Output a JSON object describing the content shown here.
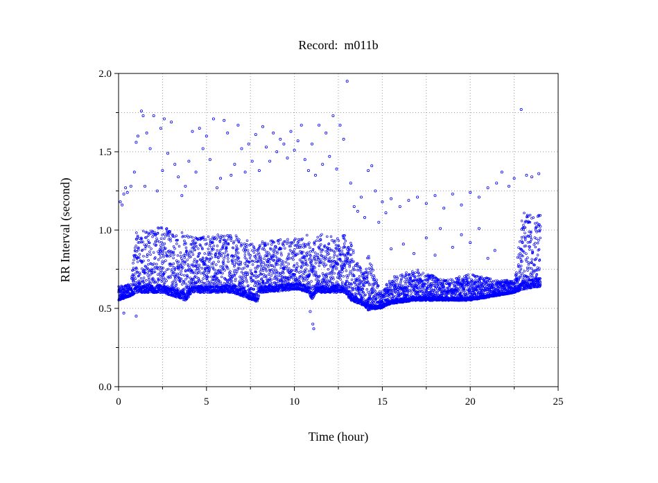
{
  "chart_data": {
    "type": "scatter",
    "title": "Record:  m011b",
    "xlabel": "Time (hour)",
    "ylabel": "RR Interval (second)",
    "xlim": [
      0,
      25
    ],
    "ylim": [
      0.0,
      2.0
    ],
    "x_ticks": [
      0,
      5,
      10,
      15,
      20,
      25
    ],
    "x_tick_labels": [
      "0",
      "5",
      "10",
      "15",
      "20",
      "25"
    ],
    "y_ticks": [
      0.0,
      0.5,
      1.0,
      1.5,
      2.0
    ],
    "y_tick_labels": [
      "0.0",
      "0.5",
      "1.0",
      "1.5",
      "2.0"
    ],
    "grid": true,
    "marker": "open-circle",
    "color": "#0000ff",
    "series": [
      {
        "band_profile": [
          {
            "x": 0.0,
            "low": 0.55,
            "high": 0.64
          },
          {
            "x": 0.7,
            "low": 0.58,
            "high": 0.66
          },
          {
            "x": 1.0,
            "low": 0.6,
            "high": 1.0
          },
          {
            "x": 2.5,
            "low": 0.6,
            "high": 1.02
          },
          {
            "x": 3.8,
            "low": 0.55,
            "high": 0.98
          },
          {
            "x": 4.2,
            "low": 0.6,
            "high": 0.96
          },
          {
            "x": 6.5,
            "low": 0.6,
            "high": 0.98
          },
          {
            "x": 7.9,
            "low": 0.54,
            "high": 0.9
          },
          {
            "x": 8.0,
            "low": 0.6,
            "high": 0.93
          },
          {
            "x": 10.2,
            "low": 0.62,
            "high": 0.95
          },
          {
            "x": 10.8,
            "low": 0.6,
            "high": 1.0
          },
          {
            "x": 11.0,
            "low": 0.55,
            "high": 0.85
          },
          {
            "x": 11.2,
            "low": 0.6,
            "high": 0.98
          },
          {
            "x": 12.9,
            "low": 0.6,
            "high": 0.97
          },
          {
            "x": 13.2,
            "low": 0.55,
            "high": 0.92
          },
          {
            "x": 13.9,
            "low": 0.52,
            "high": 0.72
          },
          {
            "x": 14.2,
            "low": 0.49,
            "high": 0.85
          },
          {
            "x": 14.9,
            "low": 0.5,
            "high": 0.6
          },
          {
            "x": 15.5,
            "low": 0.53,
            "high": 0.7
          },
          {
            "x": 17.0,
            "low": 0.55,
            "high": 0.75
          },
          {
            "x": 18.5,
            "low": 0.55,
            "high": 0.68
          },
          {
            "x": 20.0,
            "low": 0.55,
            "high": 0.72
          },
          {
            "x": 21.5,
            "low": 0.58,
            "high": 0.68
          },
          {
            "x": 22.5,
            "low": 0.6,
            "high": 0.68
          },
          {
            "x": 23.0,
            "low": 0.62,
            "high": 1.12
          },
          {
            "x": 24.0,
            "low": 0.64,
            "high": 1.1
          }
        ],
        "outliers": [
          [
            0.1,
            1.18
          ],
          [
            0.2,
            1.16
          ],
          [
            0.3,
            1.23
          ],
          [
            0.4,
            1.27
          ],
          [
            0.5,
            1.24
          ],
          [
            0.7,
            1.28
          ],
          [
            0.9,
            1.37
          ],
          [
            1.0,
            1.56
          ],
          [
            1.1,
            1.6
          ],
          [
            1.3,
            1.76
          ],
          [
            1.4,
            1.73
          ],
          [
            1.5,
            1.28
          ],
          [
            1.6,
            1.62
          ],
          [
            1.8,
            1.52
          ],
          [
            2.0,
            1.73
          ],
          [
            2.2,
            1.25
          ],
          [
            2.4,
            1.65
          ],
          [
            2.5,
            1.38
          ],
          [
            2.6,
            1.71
          ],
          [
            2.8,
            1.49
          ],
          [
            3.0,
            1.69
          ],
          [
            3.2,
            1.42
          ],
          [
            3.4,
            1.34
          ],
          [
            3.6,
            1.22
          ],
          [
            3.8,
            1.28
          ],
          [
            4.0,
            1.44
          ],
          [
            4.2,
            1.63
          ],
          [
            4.4,
            1.37
          ],
          [
            4.6,
            1.65
          ],
          [
            4.8,
            1.52
          ],
          [
            5.0,
            1.6
          ],
          [
            5.2,
            1.45
          ],
          [
            5.4,
            1.71
          ],
          [
            5.6,
            1.27
          ],
          [
            5.8,
            1.33
          ],
          [
            6.0,
            1.7
          ],
          [
            6.2,
            1.62
          ],
          [
            6.4,
            1.35
          ],
          [
            6.6,
            1.42
          ],
          [
            6.8,
            1.67
          ],
          [
            7.0,
            1.52
          ],
          [
            7.2,
            1.37
          ],
          [
            7.4,
            1.55
          ],
          [
            7.6,
            1.44
          ],
          [
            7.8,
            1.61
          ],
          [
            8.0,
            1.38
          ],
          [
            8.2,
            1.66
          ],
          [
            8.4,
            1.53
          ],
          [
            8.6,
            1.44
          ],
          [
            8.8,
            1.62
          ],
          [
            9.0,
            1.5
          ],
          [
            9.2,
            1.58
          ],
          [
            9.4,
            1.55
          ],
          [
            9.6,
            1.46
          ],
          [
            9.8,
            1.63
          ],
          [
            10.0,
            1.51
          ],
          [
            10.2,
            1.57
          ],
          [
            10.4,
            1.67
          ],
          [
            10.6,
            1.45
          ],
          [
            10.8,
            1.38
          ],
          [
            11.0,
            1.55
          ],
          [
            11.2,
            1.35
          ],
          [
            11.4,
            1.67
          ],
          [
            11.6,
            1.42
          ],
          [
            11.8,
            1.62
          ],
          [
            12.0,
            1.47
          ],
          [
            12.2,
            1.73
          ],
          [
            12.4,
            1.39
          ],
          [
            12.6,
            1.67
          ],
          [
            12.8,
            1.58
          ],
          [
            13.0,
            1.95
          ],
          [
            13.2,
            1.3
          ],
          [
            13.4,
            1.15
          ],
          [
            13.6,
            1.12
          ],
          [
            13.8,
            1.21
          ],
          [
            14.0,
            1.08
          ],
          [
            14.2,
            1.38
          ],
          [
            14.4,
            1.41
          ],
          [
            14.6,
            1.25
          ],
          [
            14.8,
            1.05
          ],
          [
            15.0,
            1.18
          ],
          [
            15.2,
            1.11
          ],
          [
            15.5,
            1.2
          ],
          [
            16.0,
            1.15
          ],
          [
            16.5,
            1.19
          ],
          [
            17.0,
            1.21
          ],
          [
            17.5,
            1.17
          ],
          [
            18.0,
            1.22
          ],
          [
            18.5,
            1.14
          ],
          [
            19.0,
            1.23
          ],
          [
            19.5,
            1.16
          ],
          [
            20.0,
            1.24
          ],
          [
            20.5,
            1.21
          ],
          [
            21.0,
            1.27
          ],
          [
            21.5,
            1.3
          ],
          [
            21.8,
            1.37
          ],
          [
            22.2,
            1.28
          ],
          [
            22.5,
            1.33
          ],
          [
            22.9,
            1.77
          ],
          [
            23.2,
            1.35
          ],
          [
            23.5,
            1.34
          ],
          [
            23.9,
            1.36
          ],
          [
            11.1,
            0.37
          ],
          [
            11.05,
            0.4
          ],
          [
            10.9,
            0.48
          ],
          [
            1.0,
            0.45
          ],
          [
            0.3,
            0.47
          ],
          [
            14.2,
            0.49
          ],
          [
            15.5,
            0.88
          ],
          [
            16.2,
            0.91
          ],
          [
            16.8,
            0.85
          ],
          [
            17.5,
            0.95
          ],
          [
            18.0,
            0.84
          ],
          [
            18.3,
            1.01
          ],
          [
            19.0,
            0.89
          ],
          [
            19.5,
            0.97
          ],
          [
            20.0,
            0.92
          ],
          [
            20.5,
            1.01
          ],
          [
            21.0,
            0.82
          ],
          [
            21.4,
            0.87
          ]
        ]
      }
    ]
  }
}
